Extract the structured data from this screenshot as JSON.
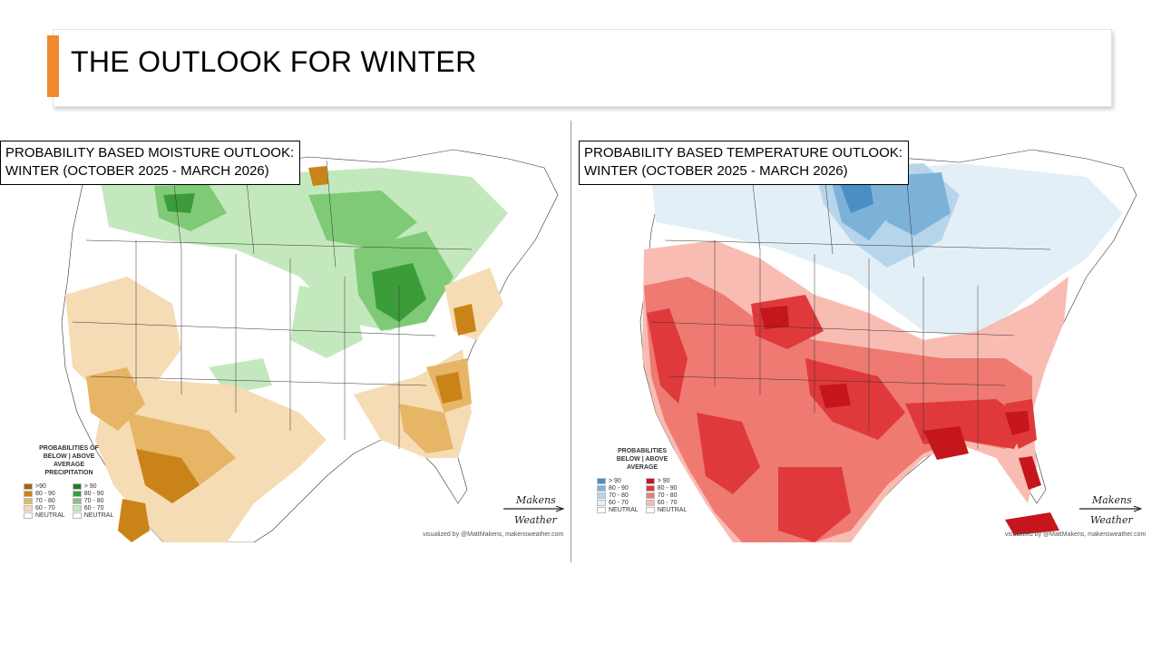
{
  "slide": {
    "title": "THE OUTLOOK FOR WINTER",
    "accent_color": "#f28a2e"
  },
  "maps": [
    {
      "caption_line1": "PROBABILITY BASED MOISTURE OUTLOOK:",
      "caption_line2": "WINTER (OCTOBER 2025 - MARCH  2026)",
      "legend": {
        "head1": "PROBABILITIES OF",
        "head2": "BELOW   |   ABOVE",
        "head3": "AVERAGE",
        "head4": "PRECIPITATION",
        "below": [
          {
            "label": ">90",
            "color": "#a9610a"
          },
          {
            "label": "80 - 90",
            "color": "#c98318"
          },
          {
            "label": "70 - 80",
            "color": "#e6b565"
          },
          {
            "label": "60 - 70",
            "color": "#f6dcb4"
          },
          {
            "label": "NEUTRAL",
            "color": "#ffffff"
          }
        ],
        "above": [
          {
            "label": "> 90",
            "color": "#1f7f1f"
          },
          {
            "label": "80 - 90",
            "color": "#3c9c3a"
          },
          {
            "label": "70 - 80",
            "color": "#7fca77"
          },
          {
            "label": "60 - 70",
            "color": "#c4e8bd"
          },
          {
            "label": "NEUTRAL",
            "color": "#ffffff"
          }
        ]
      },
      "credit": "visualized by @MattMakens, makensweather.com",
      "logo_top": "Makens",
      "logo_bottom": "Weather"
    },
    {
      "caption_line1": "PROBABILITY BASED TEMPERATURE OUTLOOK:",
      "caption_line2": "WINTER (OCTOBER 2025 - MARCH 2026)",
      "legend": {
        "head1": "PROBABILITIES",
        "head2": "BELOW   |   ABOVE",
        "head3": "AVERAGE",
        "below": [
          {
            "label": "> 90",
            "color": "#4a8fc4"
          },
          {
            "label": "80 - 90",
            "color": "#7db2d8"
          },
          {
            "label": "70 - 80",
            "color": "#b6d5ea"
          },
          {
            "label": "60 - 70",
            "color": "#e3eff7"
          },
          {
            "label": "NEUTRAL",
            "color": "#ffffff"
          }
        ],
        "above": [
          {
            "label": "> 90",
            "color": "#c4161c"
          },
          {
            "label": "80 - 90",
            "color": "#e0393c"
          },
          {
            "label": "70 - 80",
            "color": "#ee7a72"
          },
          {
            "label": "60 - 70",
            "color": "#f8bcb2"
          },
          {
            "label": "NEUTRAL",
            "color": "#ffffff"
          }
        ]
      },
      "credit": "visualized by @MattMakens, makensweather.com",
      "logo_top": "Makens",
      "logo_bottom": "Weather"
    }
  ]
}
